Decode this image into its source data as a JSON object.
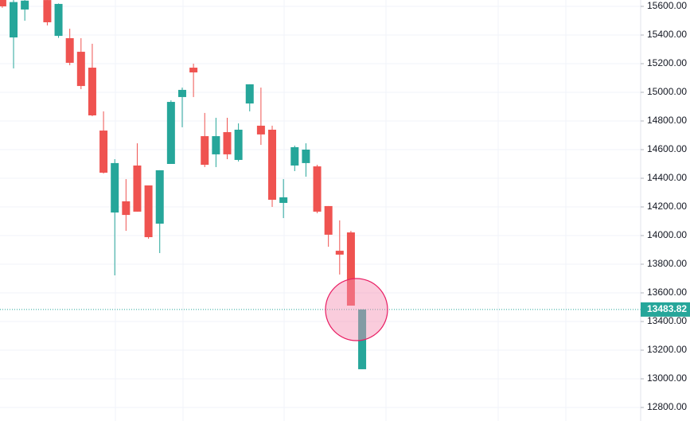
{
  "chart_data": {
    "type": "candlestick",
    "open": [
      15650,
      15383,
      15578,
      null,
      15644,
      15394,
      15378,
      15283,
      15172,
      14733,
      14161,
      14239,
      14489,
      14350,
      14083,
      14500,
      14967,
      15172,
      14694,
      14567,
      14722,
      14528,
      14922,
      14767,
      14739,
      14228,
      14489,
      14506,
      14483,
      14206,
      13894,
      14022,
      13067
    ],
    "high": [
      15650,
      15644,
      15644,
      null,
      15644,
      15620,
      15444,
      15378,
      15339,
      14867,
      14533,
      14394,
      14644,
      14350,
      14456,
      14944,
      15033,
      15200,
      14856,
      14822,
      14822,
      14783,
      15056,
      15033,
      14767,
      14394,
      14628,
      14644,
      14494,
      14206,
      14106,
      14033,
      13484
    ],
    "low": [
      15590,
      15167,
      15500,
      null,
      15467,
      15380,
      15189,
      15022,
      14833,
      14433,
      13722,
      14033,
      14167,
      13978,
      13878,
      14500,
      14756,
      14967,
      14478,
      14478,
      14533,
      14517,
      14867,
      14633,
      14200,
      14122,
      14450,
      14411,
      14156,
      13922,
      13728,
      13511,
      13067
    ],
    "close": [
      15600,
      15630,
      15640,
      null,
      15489,
      15617,
      15206,
      15044,
      14839,
      14439,
      14506,
      14144,
      14167,
      13989,
      14456,
      14933,
      15017,
      15139,
      14494,
      14694,
      14567,
      14739,
      15056,
      14706,
      14250,
      14267,
      14617,
      14600,
      14167,
      14006,
      13867,
      13511,
      13484
    ],
    "up_color": "#26a69a",
    "down_color": "#ef5350",
    "ylim": [
      12705.6,
      15644.4
    ],
    "yticks": [
      {
        "value": 12800,
        "label": "12800.00"
      },
      {
        "value": 13000,
        "label": "13000.00"
      },
      {
        "value": 13200,
        "label": "13200.00"
      },
      {
        "value": 13400,
        "label": "13400.00"
      },
      {
        "value": 13600,
        "label": "13600.00"
      },
      {
        "value": 13800,
        "label": "13800.00"
      },
      {
        "value": 14000,
        "label": "14000.00"
      },
      {
        "value": 14200,
        "label": "14200.00"
      },
      {
        "value": 14400,
        "label": "14400.00"
      },
      {
        "value": 14600,
        "label": "14600.00"
      },
      {
        "value": 14800,
        "label": "14800.00"
      },
      {
        "value": 15000,
        "label": "15000.00"
      },
      {
        "value": 15200,
        "label": "15200.00"
      },
      {
        "value": 15400,
        "label": "15400.00"
      },
      {
        "value": 15600,
        "label": "15600.00"
      }
    ],
    "last_price": 13483.82,
    "grid": true
  }
}
